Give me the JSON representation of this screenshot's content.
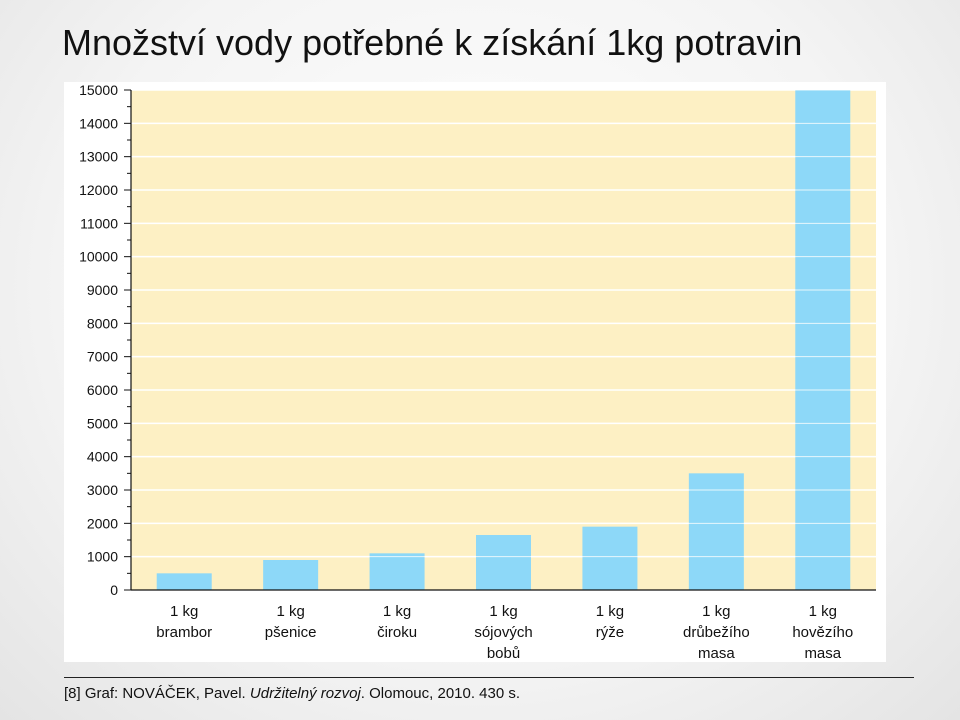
{
  "slide": {
    "title": "Množství vody potřebné k získání 1kg potravin"
  },
  "source": {
    "prefix": "[8] Graf: NOVÁČEK, Pavel. ",
    "work": "Udržitelný rozvoj",
    "suffix": ". Olomouc, 2010. 430 s."
  },
  "colors": {
    "bar": "#8dd8f8",
    "plot_background": "#fdf0c4",
    "grid": "#ffffff",
    "axis": "#111111"
  },
  "chart_data": {
    "type": "bar",
    "title": "",
    "xlabel": "",
    "ylabel": "",
    "ylim": [
      0,
      15000
    ],
    "yticks": [
      0,
      1000,
      2000,
      3000,
      4000,
      5000,
      6000,
      7000,
      8000,
      9000,
      10000,
      11000,
      12000,
      13000,
      14000,
      15000
    ],
    "grid": true,
    "legend": "none",
    "categories": [
      [
        "1 kg",
        "brambor"
      ],
      [
        "1 kg",
        "pšenice"
      ],
      [
        "1 kg",
        "čiroku"
      ],
      [
        "1 kg",
        "sójových",
        "bobů"
      ],
      [
        "1 kg",
        "rýže"
      ],
      [
        "1 kg",
        "drůbežího",
        "masa"
      ],
      [
        "1 kg",
        "hovězího",
        "masa"
      ]
    ],
    "values": [
      500,
      900,
      1100,
      1650,
      1900,
      3500,
      15000
    ]
  }
}
